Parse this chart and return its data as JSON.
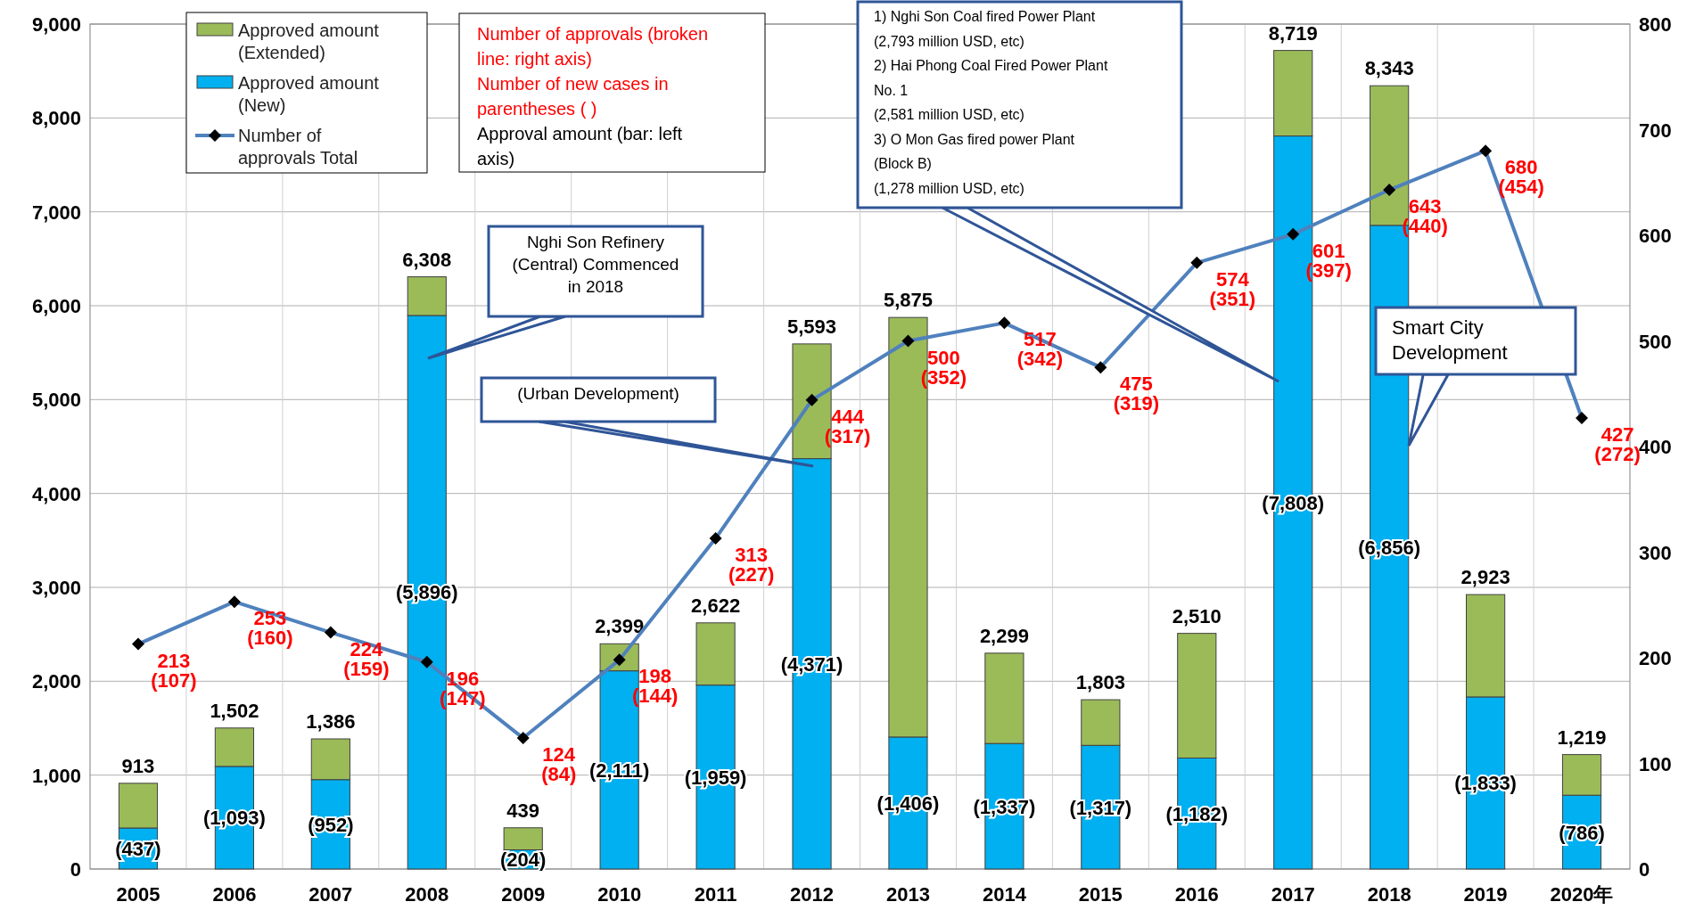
{
  "chart_data": {
    "type": "bar",
    "stacked": true,
    "categories": [
      "2005",
      "2006",
      "2007",
      "2008",
      "2009",
      "2010",
      "2011",
      "2012",
      "2013",
      "2014",
      "2015",
      "2016",
      "2017",
      "2018",
      "2019",
      "2020年"
    ],
    "series": [
      {
        "name": "Approved amount (New)",
        "color": "#00b0f0",
        "values": [
          437,
          1093,
          952,
          5896,
          204,
          2111,
          1959,
          4371,
          1406,
          1337,
          1317,
          1182,
          7808,
          6856,
          1833,
          786
        ],
        "value_labels": [
          "(437)",
          "(1,093)",
          "(952)",
          "(5,896)",
          "(204)",
          "(2,111)",
          "(1,959)",
          "(4,371)",
          "(1,406)",
          "(1,337)",
          "(1,317)",
          "(1,182)",
          "(7,808)",
          "(6,856)",
          "(1,833)",
          "(786)"
        ]
      },
      {
        "name": "Approved amount (Extended)",
        "color": "#9bbb59",
        "values": [
          476,
          409,
          434,
          412,
          235,
          288,
          663,
          1222,
          4469,
          962,
          486,
          1328,
          911,
          1487,
          1090,
          433
        ]
      },
      {
        "name": "Number of approvals Total",
        "type": "line",
        "axis": "y2",
        "color": "#4f81bd",
        "marker": "diamond",
        "line_style": "solid",
        "values": [
          213,
          253,
          224,
          196,
          124,
          198,
          313,
          444,
          500,
          517,
          475,
          574,
          601,
          643,
          680,
          427
        ],
        "value_labels": [
          "213\n(107)",
          "253\n(160)",
          "224\n(159)",
          "196\n(147)",
          "124\n(84)",
          "198\n(144)",
          "313\n(227)",
          "444\n(317)",
          "500\n(352)",
          "517\n(342)",
          "475\n(319)",
          "574\n(351)",
          "601\n(397)",
          "643\n(440)",
          "680\n(454)",
          "427\n(272)"
        ]
      }
    ],
    "totals": [
      "913",
      "1,502",
      "1,386",
      "6,308",
      "439",
      "2,399",
      "2,622",
      "5,593",
      "5,875",
      "2,299",
      "1,803",
      "2,510",
      "8,719",
      "8,343",
      "2,923",
      "1,219"
    ],
    "ylim": [
      0,
      9000
    ],
    "yticks": [
      0,
      {
        "value": 1000,
        "label": "1,000"
      },
      {
        "value": 2000,
        "label": "2,000"
      },
      {
        "value": 3000,
        "label": "3,000"
      },
      {
        "value": 4000,
        "label": "4,000"
      },
      {
        "value": 5000,
        "label": "5,000"
      },
      {
        "value": 6000,
        "label": "6,000"
      },
      {
        "value": 7000,
        "label": "7,000"
      },
      {
        "value": 8000,
        "label": "8,000"
      },
      {
        "value": 9000,
        "label": "9,000"
      }
    ],
    "y2lim": [
      0,
      800
    ],
    "y2ticks": [
      0,
      100,
      200,
      300,
      400,
      500,
      600,
      700,
      800
    ],
    "grid": true,
    "legend": "top left",
    "annotations": [
      "Number of approvals (broken line: right axis)",
      "Number of new cases in parentheses ( )",
      "Approval amount (bar: left axis)",
      "Nghi Son Refinery (Central) Commenced in 2018",
      "(Urban Development)",
      "1) Nghi Son Coal fired Power Plant\n(2,793 million USD, etc)\n2) Hai Phong Coal Fired Power Plant\nNo. 1\n(2,581 million USD, etc)\n3)  O Mon Gas fired power Plant\n(Block B)\n(1,278 million USD, etc)",
      "Smart City Development"
    ]
  }
}
